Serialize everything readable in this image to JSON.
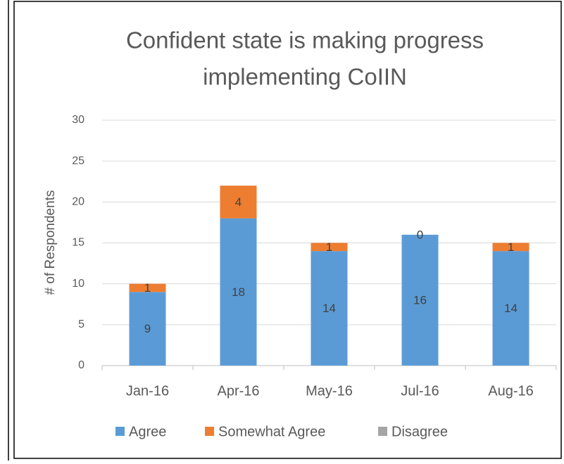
{
  "chart_data": {
    "type": "stacked_bar",
    "title": [
      "Confident state is making progress",
      "implementing CoIIN"
    ],
    "y_label": "# of Respondents",
    "categories": [
      "Jan-16",
      "Apr-16",
      "May-16",
      "Jul-16",
      "Aug-16"
    ],
    "series": [
      {
        "name": "Agree",
        "color": "#5b9bd5",
        "values": [
          9,
          18,
          14,
          16,
          14
        ]
      },
      {
        "name": "Somewhat Agree",
        "color": "#ed7d31",
        "values": [
          1,
          4,
          1,
          0,
          1
        ]
      },
      {
        "name": "Disagree",
        "color": "#a5a5a5",
        "values": [
          0,
          0,
          0,
          0,
          0
        ]
      }
    ],
    "ylim": [
      0,
      30
    ],
    "yticks": [
      0,
      5,
      10,
      15,
      20,
      25,
      30
    ],
    "grid": true,
    "legend": "bottom"
  }
}
